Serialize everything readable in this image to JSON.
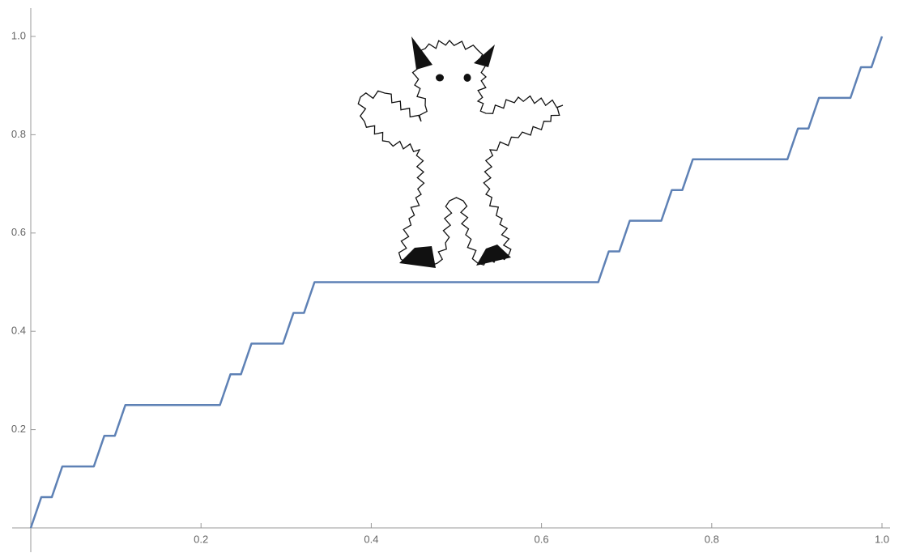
{
  "chart_data": {
    "type": "line",
    "x": [
      0,
      0.012346,
      0.024691,
      0.037037,
      0.074074,
      0.08642,
      0.098765,
      0.111111,
      0.222222,
      0.234568,
      0.246914,
      0.259259,
      0.296296,
      0.308642,
      0.320988,
      0.333333,
      0.666667,
      0.679012,
      0.691358,
      0.703704,
      0.740741,
      0.753086,
      0.765432,
      0.777778,
      0.888889,
      0.901235,
      0.91358,
      0.925926,
      0.962963,
      0.975309,
      0.987654,
      1
    ],
    "y": [
      0,
      0.0625,
      0.0625,
      0.125,
      0.125,
      0.1875,
      0.1875,
      0.25,
      0.25,
      0.3125,
      0.3125,
      0.375,
      0.375,
      0.4375,
      0.4375,
      0.5,
      0.5,
      0.5625,
      0.5625,
      0.625,
      0.625,
      0.6875,
      0.6875,
      0.75,
      0.75,
      0.8125,
      0.8125,
      0.875,
      0.875,
      0.9375,
      0.9375,
      1
    ],
    "color": "#5e81b5",
    "xlim": [
      0,
      1
    ],
    "ylim": [
      0,
      1
    ],
    "xticks": [
      0.2,
      0.4,
      0.6,
      0.8,
      {
        "value": 1,
        "label": "1.0"
      }
    ],
    "yticks": [
      0.2,
      0.4,
      0.6,
      0.8,
      {
        "value": 1,
        "label": "1.0"
      }
    ]
  }
}
